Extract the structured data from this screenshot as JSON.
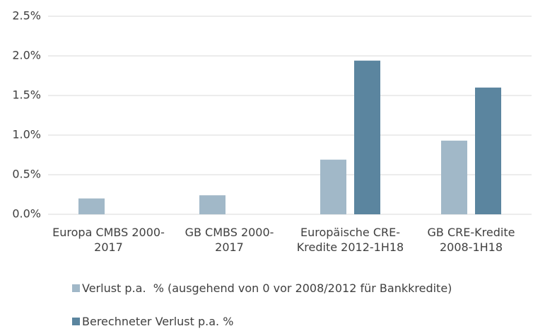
{
  "chart_data": {
    "type": "bar",
    "categories": [
      "Europa CMBS 2000-2017",
      "GB CMBS 2000-2017",
      "Europäische CRE-Kredite 2012-1H18",
      "GB CRE-Kredite 2008-1H18"
    ],
    "series": [
      {
        "name": "Verlust p.a.  % (ausgehend von 0 vor 2008/2012 für Bankkredite)",
        "color": "#a1b8c8",
        "values": [
          0.2,
          0.24,
          0.69,
          0.93
        ]
      },
      {
        "name": "Berechneter Verlust p.a. %",
        "color": "#5b859f",
        "values": [
          null,
          null,
          1.94,
          1.6
        ]
      }
    ],
    "ylim": [
      0,
      2.5
    ],
    "yticks": [
      {
        "value": 0,
        "label": "0.0%"
      },
      {
        "value": 0.5,
        "label": "0.5%"
      },
      {
        "value": 1,
        "label": "1.0%"
      },
      {
        "value": 1.5,
        "label": "1.5%"
      },
      {
        "value": 2,
        "label": "2.0%"
      },
      {
        "value": 2.5,
        "label": "2.5%"
      }
    ],
    "grid": true
  }
}
